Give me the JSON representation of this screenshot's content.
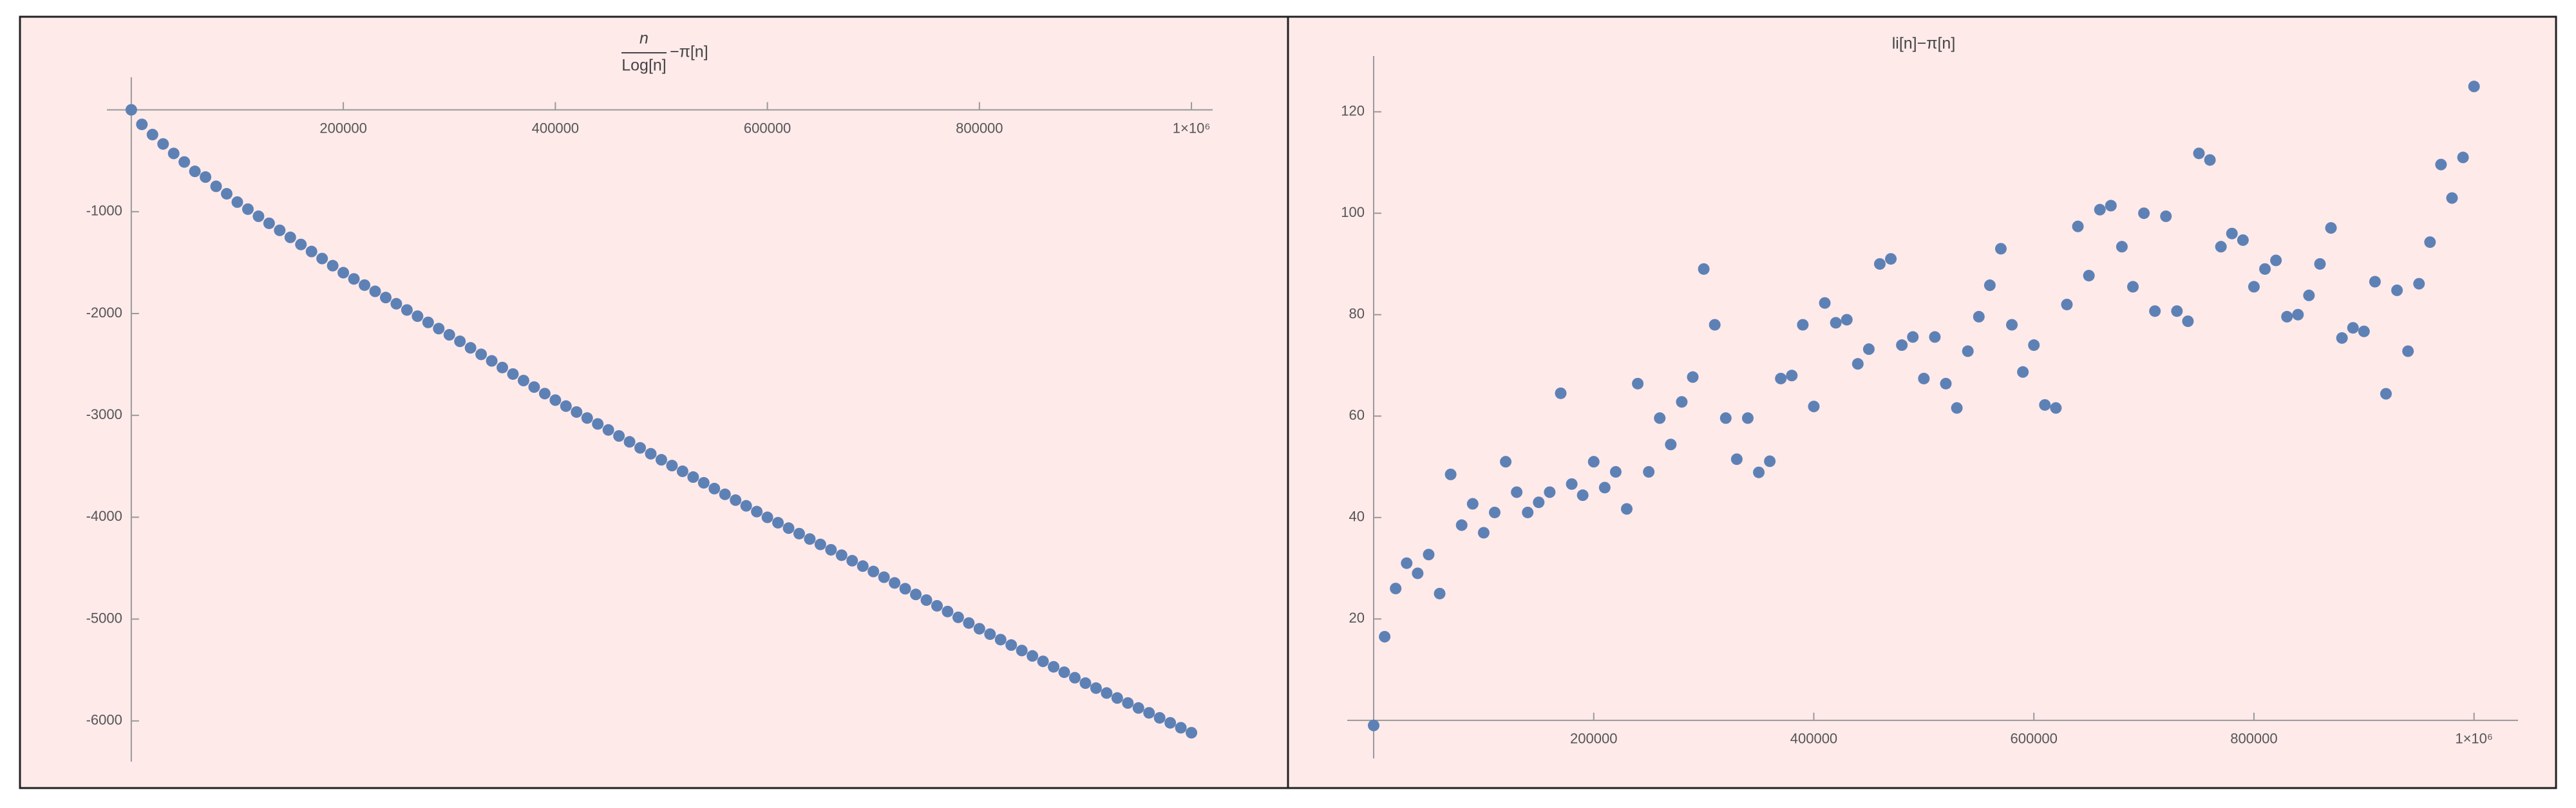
{
  "chart_data": [
    {
      "type": "scatter",
      "title": {
        "numerator": "n",
        "denominator": "Log[n]",
        "rest": "−π[n]"
      },
      "color": "#5e81b5",
      "x": [
        0,
        10000,
        20000,
        30000,
        40000,
        50000,
        60000,
        70000,
        80000,
        90000,
        100000,
        110000,
        120000,
        130000,
        140000,
        150000,
        160000,
        170000,
        180000,
        190000,
        200000,
        210000,
        220000,
        230000,
        240000,
        250000,
        260000,
        270000,
        280000,
        290000,
        300000,
        310000,
        320000,
        330000,
        340000,
        350000,
        360000,
        370000,
        380000,
        390000,
        400000,
        410000,
        420000,
        430000,
        440000,
        450000,
        460000,
        470000,
        480000,
        490000,
        500000,
        510000,
        520000,
        530000,
        540000,
        550000,
        560000,
        570000,
        580000,
        590000,
        600000,
        610000,
        620000,
        630000,
        640000,
        650000,
        660000,
        670000,
        680000,
        690000,
        700000,
        710000,
        720000,
        730000,
        740000,
        750000,
        760000,
        770000,
        780000,
        790000,
        800000,
        810000,
        820000,
        830000,
        840000,
        850000,
        860000,
        870000,
        880000,
        890000,
        900000,
        910000,
        920000,
        930000,
        940000,
        950000,
        960000,
        970000,
        980000,
        990000,
        1000000
      ],
      "values": [
        0,
        -143,
        -243,
        -335,
        -428,
        -512,
        -604,
        -660,
        -751,
        -824,
        -906,
        -975,
        -1045,
        -1114,
        -1183,
        -1252,
        -1322,
        -1391,
        -1460,
        -1530,
        -1599,
        -1660,
        -1721,
        -1782,
        -1843,
        -1904,
        -1965,
        -2026,
        -2087,
        -2148,
        -2209,
        -2273,
        -2337,
        -2401,
        -2465,
        -2530,
        -2594,
        -2658,
        -2722,
        -2786,
        -2850,
        -2909,
        -2967,
        -3026,
        -3084,
        -3143,
        -3202,
        -3260,
        -3319,
        -3377,
        -3436,
        -3493,
        -3549,
        -3606,
        -3662,
        -3719,
        -3775,
        -3832,
        -3888,
        -3945,
        -4001,
        -4054,
        -4107,
        -4161,
        -4214,
        -4267,
        -4320,
        -4373,
        -4427,
        -4480,
        -4533,
        -4589,
        -4645,
        -4702,
        -4758,
        -4814,
        -4870,
        -4926,
        -4983,
        -5039,
        -5095,
        -5148,
        -5202,
        -5255,
        -5309,
        -5362,
        -5415,
        -5469,
        -5522,
        -5576,
        -5629,
        -5678,
        -5726,
        -5775,
        -5824,
        -5873,
        -5921,
        -5970,
        -6019,
        -6067,
        -6116
      ],
      "xlim": [
        -23000,
        1020000
      ],
      "ylim": [
        -6400,
        320
      ],
      "xticks": [
        200000,
        400000,
        600000,
        800000,
        {
          "value": 1000000,
          "label": "1×10⁶"
        }
      ],
      "yticks": [
        -1000,
        -2000,
        -3000,
        -4000,
        -5000,
        -6000
      ]
    },
    {
      "type": "scatter",
      "title": "li[n]−π[n]",
      "color": "#5e81b5",
      "x": [
        0,
        10000,
        20000,
        30000,
        40000,
        50000,
        60000,
        70000,
        80000,
        90000,
        100000,
        110000,
        120000,
        130000,
        140000,
        150000,
        160000,
        170000,
        180000,
        190000,
        200000,
        210000,
        220000,
        230000,
        240000,
        250000,
        260000,
        270000,
        280000,
        290000,
        300000,
        310000,
        320000,
        330000,
        340000,
        350000,
        360000,
        370000,
        380000,
        390000,
        400000,
        410000,
        420000,
        430000,
        440000,
        450000,
        460000,
        470000,
        480000,
        490000,
        500000,
        510000,
        520000,
        530000,
        540000,
        550000,
        560000,
        570000,
        580000,
        590000,
        600000,
        610000,
        620000,
        630000,
        640000,
        650000,
        660000,
        670000,
        680000,
        690000,
        700000,
        710000,
        720000,
        730000,
        740000,
        750000,
        760000,
        770000,
        780000,
        790000,
        800000,
        810000,
        820000,
        830000,
        840000,
        850000,
        860000,
        870000,
        880000,
        890000,
        900000,
        910000,
        920000,
        930000,
        940000,
        950000,
        960000,
        970000,
        980000,
        990000,
        1000000
      ],
      "values": [
        -1,
        16.5,
        26,
        31,
        29,
        32.7,
        25,
        48.5,
        38.5,
        42.7,
        37,
        41,
        51,
        45,
        41,
        43,
        45,
        64.5,
        46.6,
        44.4,
        51,
        45.9,
        49,
        41.7,
        66.4,
        49,
        59.6,
        54.4,
        62.8,
        67.7,
        89,
        78,
        59.6,
        51.5,
        59.6,
        48.9,
        51.1,
        67.4,
        68,
        78,
        61.9,
        82.3,
        78.4,
        79,
        70.3,
        73.2,
        90,
        91,
        74,
        75.6,
        67.4,
        75.6,
        66.4,
        61.6,
        72.8,
        79.6,
        85.8,
        93,
        78,
        68.7,
        74,
        62.2,
        61.6,
        82,
        97.4,
        87.7,
        100.7,
        101.5,
        93.4,
        85.5,
        100,
        80.7,
        99.4,
        80.7,
        78.7,
        111.8,
        110.5,
        93.4,
        96,
        94.7,
        85.5,
        89,
        90.7,
        79.6,
        80,
        83.8,
        90,
        97.1,
        75.4,
        77.4,
        76.7,
        86.5,
        64.4,
        84.8,
        72.8,
        86.1,
        94.3,
        109.6,
        103,
        111,
        125
      ],
      "xlim": [
        -24000,
        1040000
      ],
      "ylim": [
        -7.5,
        131
      ],
      "xticks": [
        200000,
        400000,
        600000,
        800000,
        {
          "value": 1000000,
          "label": "1×10⁶"
        }
      ],
      "yticks": [
        20,
        40,
        60,
        80,
        100,
        120
      ]
    }
  ]
}
